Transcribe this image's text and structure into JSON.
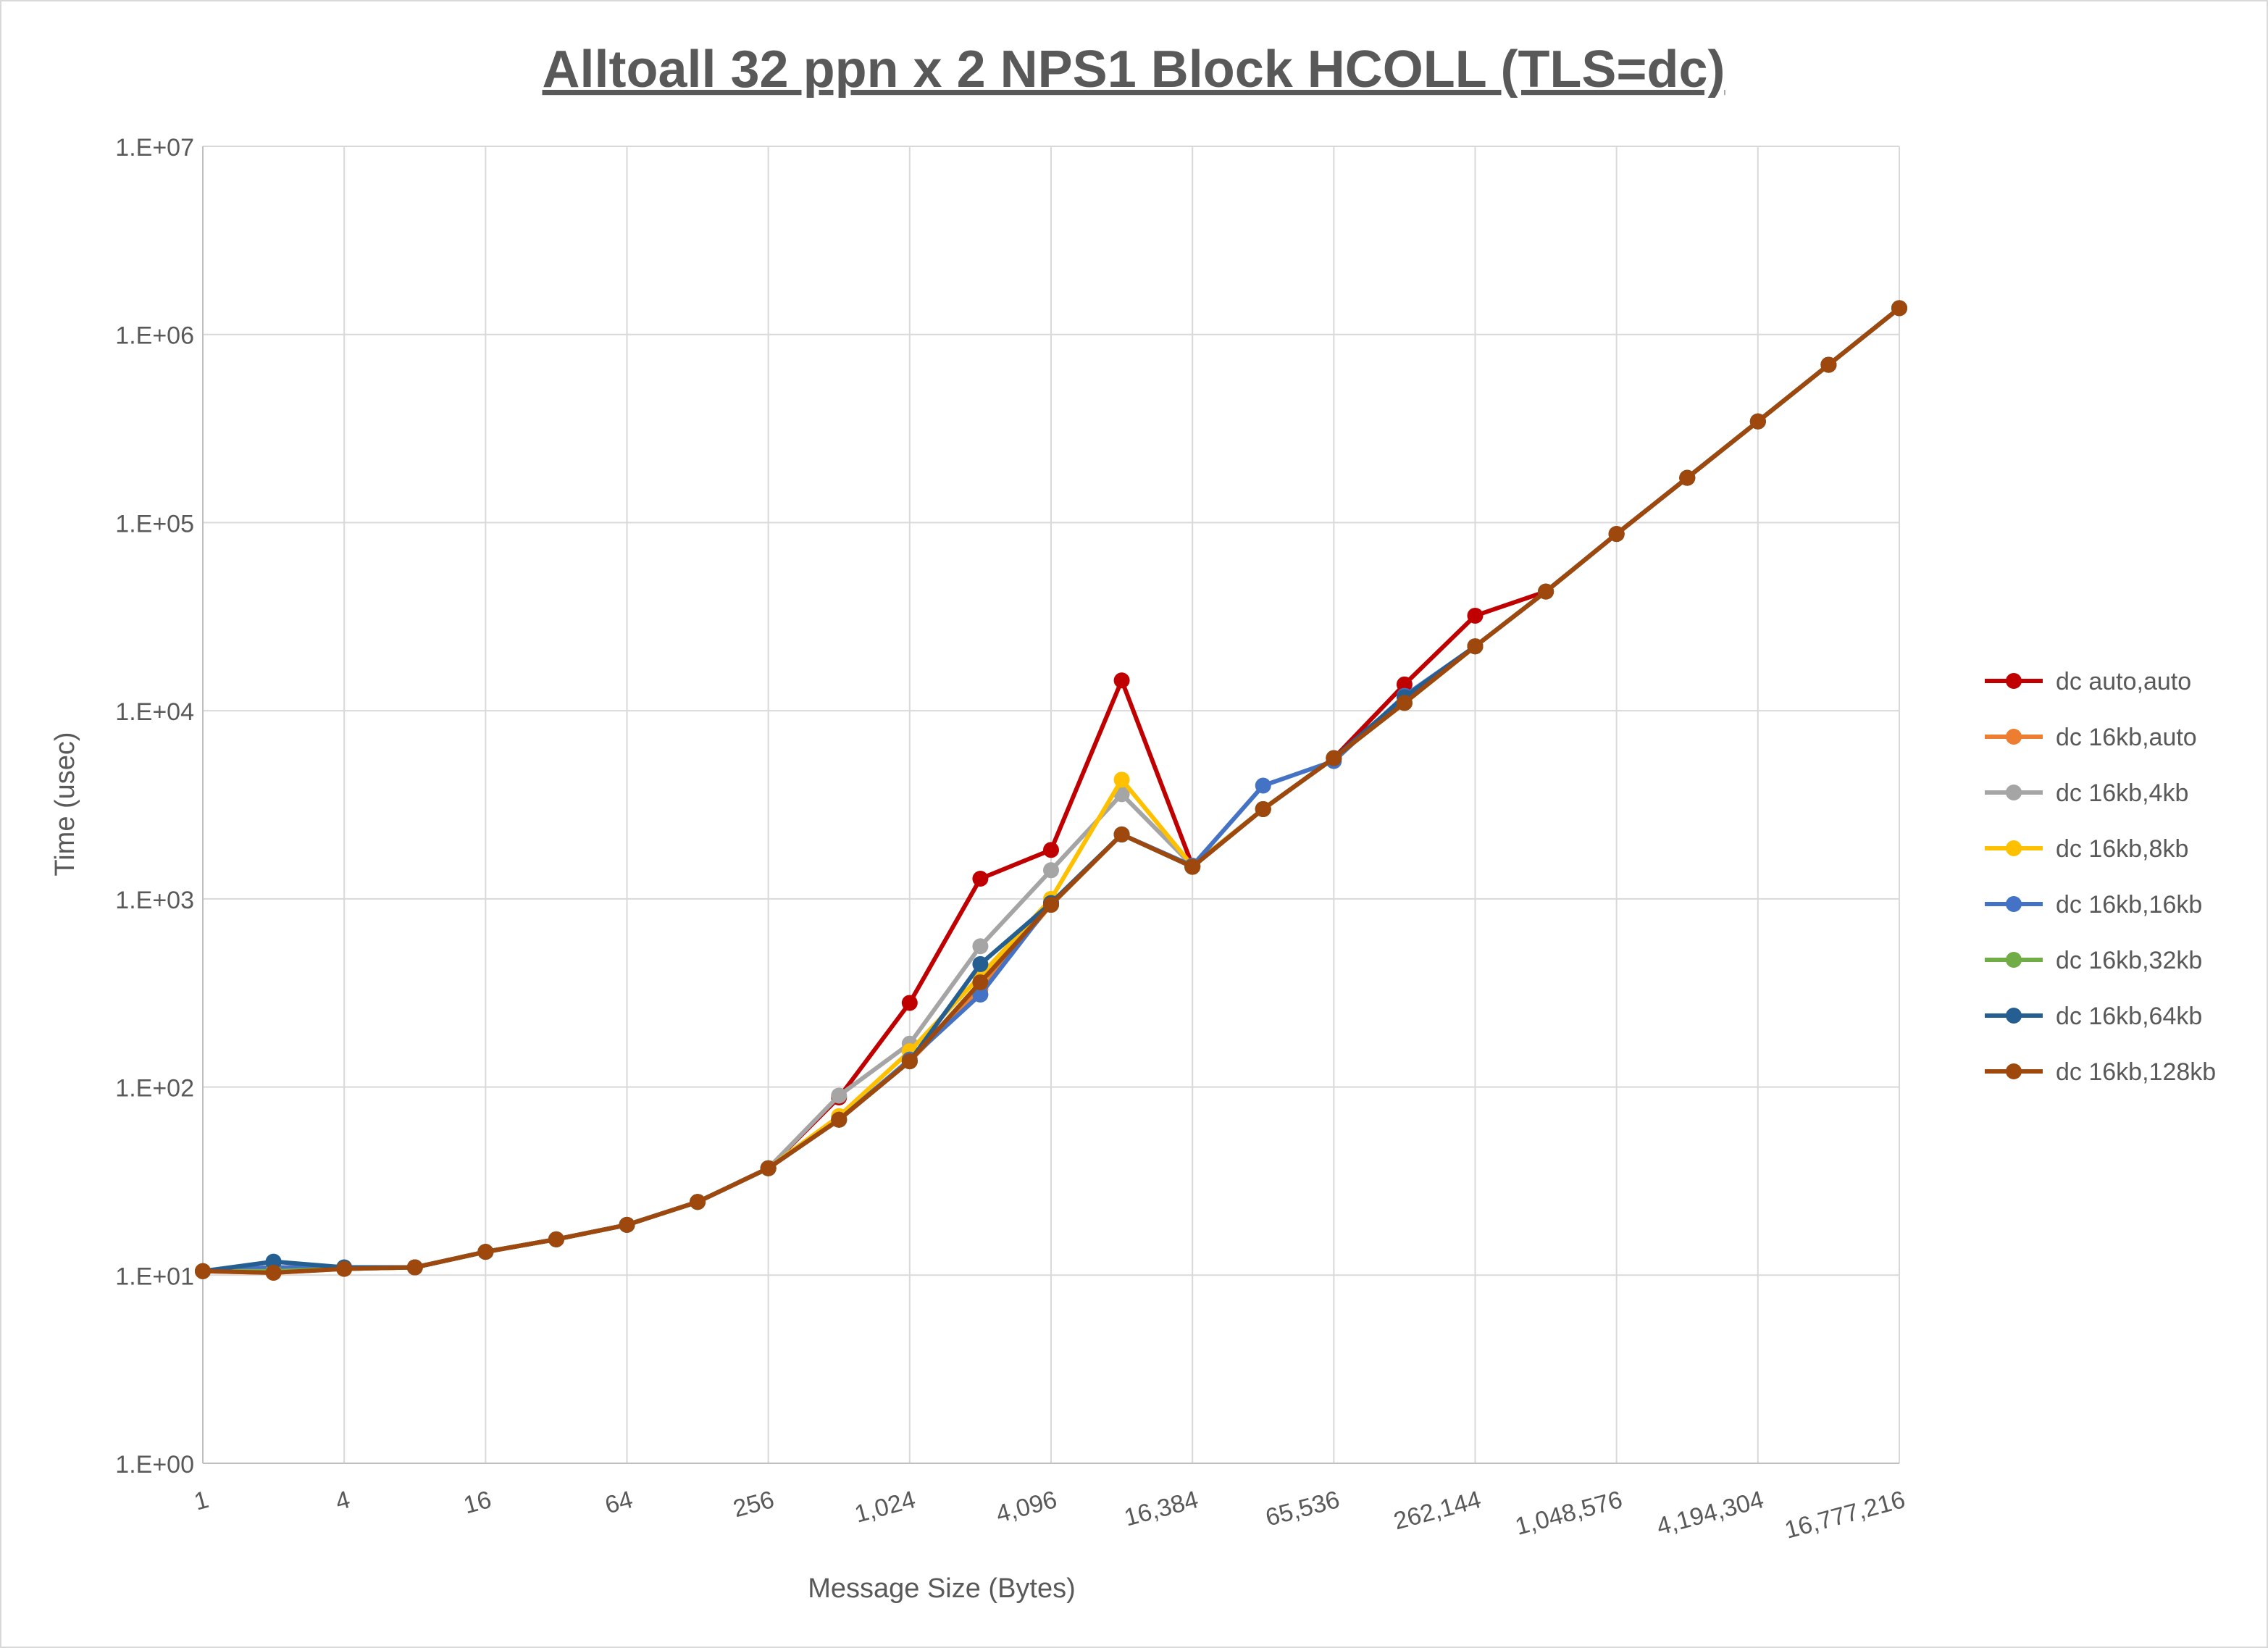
{
  "chart_data": {
    "type": "line",
    "title": "Alltoall 32 ppn x 2 NPS1 Block HCOLL (TLS=dc)",
    "x_label": "Message Size (Bytes)",
    "y_label": "Time (usec)",
    "xscale": "log",
    "yscale": "log",
    "grid": true,
    "legend": "right",
    "x": [
      1,
      2,
      4,
      8,
      16,
      32,
      64,
      128,
      256,
      512,
      1024,
      2048,
      4096,
      8192,
      16384,
      32768,
      65536,
      131072,
      262144,
      524288,
      1048576,
      2097152,
      4194304,
      8388608,
      16777216
    ],
    "xlim": [
      1,
      16777216
    ],
    "xticks": [
      1,
      4,
      16,
      64,
      256,
      {
        "value": 1024,
        "label": "1,024"
      },
      {
        "value": 4096,
        "label": "4,096"
      },
      {
        "value": 16384,
        "label": "16,384"
      },
      {
        "value": 65536,
        "label": "65,536"
      },
      {
        "value": 262144,
        "label": "262,144"
      },
      {
        "value": 1048576,
        "label": "1,048,576"
      },
      {
        "value": 4194304,
        "label": "4,194,304"
      },
      {
        "value": 16777216,
        "label": "16,777,216"
      }
    ],
    "ylim": [
      1,
      10000000
    ],
    "yticks": [
      {
        "value": 1,
        "label": "1.E+00"
      },
      {
        "value": 10,
        "label": "1.E+01"
      },
      {
        "value": 100,
        "label": "1.E+02"
      },
      {
        "value": 1000,
        "label": "1.E+03"
      },
      {
        "value": 10000,
        "label": "1.E+04"
      },
      {
        "value": 100000,
        "label": "1.E+05"
      },
      {
        "value": 1000000,
        "label": "1.E+06"
      },
      {
        "value": 10000000,
        "label": "1.E+07"
      }
    ],
    "series": [
      {
        "name": "dc auto,auto",
        "color": "#c00000",
        "values": [
          10.5,
          11,
          10.9,
          11,
          13.3,
          15.5,
          18.5,
          24.5,
          37,
          88,
          280,
          1280,
          1820,
          14500,
          1500,
          3000,
          5600,
          13800,
          32000,
          43000,
          87000,
          173000,
          345000,
          690000,
          1380000
        ]
      },
      {
        "name": "dc 16kb,auto",
        "color": "#ed7d31",
        "values": [
          10.5,
          10.3,
          10.8,
          11,
          13.3,
          15.5,
          18.5,
          24.5,
          37,
          67,
          137,
          330,
          930,
          2200,
          1480,
          3000,
          5600,
          11000,
          22000,
          43000,
          87000,
          173000,
          345000,
          690000,
          1380000
        ]
      },
      {
        "name": "dc 16kb,4kb",
        "color": "#a5a5a5",
        "values": [
          10.5,
          10.5,
          10.8,
          11,
          13.3,
          15.5,
          18.5,
          24.5,
          37,
          90,
          170,
          560,
          1420,
          3600,
          1500,
          3000,
          5600,
          11000,
          22000,
          43000,
          87000,
          173000,
          345000,
          690000,
          1380000
        ]
      },
      {
        "name": "dc 16kb,8kb",
        "color": "#ffc000",
        "values": [
          10.5,
          10.5,
          10.8,
          11,
          13.3,
          15.5,
          18.5,
          24.5,
          37,
          70,
          155,
          390,
          1000,
          4300,
          1500,
          3000,
          5600,
          11000,
          22000,
          43000,
          87000,
          173000,
          345000,
          690000,
          1380000
        ]
      },
      {
        "name": "dc 16kb,16kb",
        "color": "#4472c4",
        "values": [
          10.5,
          11,
          10.9,
          11,
          13.3,
          15.5,
          18.5,
          24.5,
          37,
          67,
          140,
          310,
          950,
          2200,
          1500,
          4000,
          5400,
          12000,
          22000,
          43000,
          87000,
          173000,
          345000,
          690000,
          1380000
        ]
      },
      {
        "name": "dc 16kb,32kb",
        "color": "#70ad47",
        "values": [
          10.5,
          10.5,
          10.8,
          11,
          13.3,
          15.5,
          18.5,
          24.5,
          37,
          67,
          137,
          360,
          930,
          2200,
          1480,
          3000,
          5600,
          11000,
          22000,
          43000,
          87000,
          173000,
          345000,
          690000,
          1380000
        ]
      },
      {
        "name": "dc 16kb,64kb",
        "color": "#255e91",
        "values": [
          10.5,
          11.8,
          11,
          11,
          13.3,
          15.5,
          18.5,
          24.5,
          37,
          67,
          137,
          450,
          950,
          2200,
          1480,
          3000,
          5600,
          11800,
          22000,
          43000,
          87000,
          173000,
          345000,
          690000,
          1380000
        ]
      },
      {
        "name": "dc 16kb,128kb",
        "color": "#9e480e",
        "values": [
          10.5,
          10.3,
          10.8,
          11,
          13.3,
          15.5,
          18.5,
          24.5,
          37,
          67,
          137,
          360,
          930,
          2200,
          1480,
          3000,
          5600,
          11000,
          22000,
          43000,
          87000,
          173000,
          345000,
          690000,
          1380000
        ]
      }
    ]
  }
}
